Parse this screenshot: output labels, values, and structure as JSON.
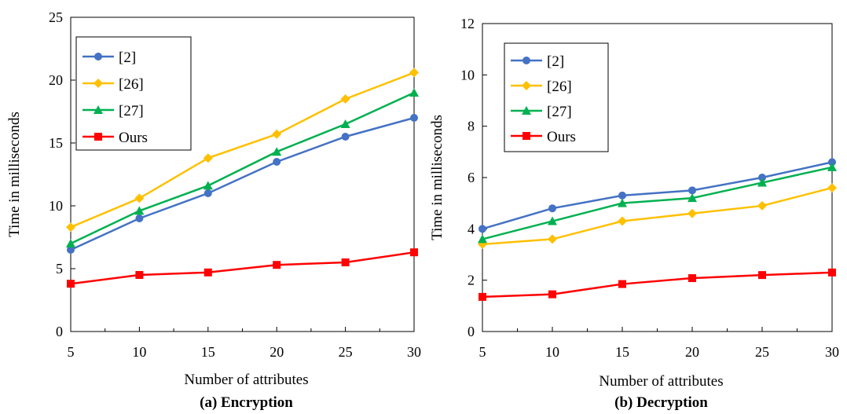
{
  "chart_data": [
    {
      "type": "line",
      "caption": "(a) Encryption",
      "xlabel": "Number of attributes",
      "ylabel": "Time in milliseconds",
      "x": [
        5,
        10,
        15,
        20,
        25,
        30
      ],
      "xlim": [
        5,
        30
      ],
      "ylim": [
        0,
        25
      ],
      "yticks": [
        0,
        5,
        10,
        15,
        20,
        25
      ],
      "xticks": [
        5,
        10,
        15,
        20,
        25,
        30
      ],
      "grid": false,
      "legend_position": "top-left",
      "series": [
        {
          "name": "[2]",
          "color": "#4472C4",
          "marker": "circle",
          "values": [
            6.5,
            9.0,
            11.0,
            13.5,
            15.5,
            17.0
          ]
        },
        {
          "name": "[26]",
          "color": "#FFC000",
          "marker": "diamond",
          "values": [
            8.3,
            10.6,
            13.8,
            15.7,
            18.5,
            20.6
          ]
        },
        {
          "name": "[27]",
          "color": "#00B050",
          "marker": "triangle",
          "values": [
            7.0,
            9.6,
            11.6,
            14.3,
            16.5,
            19.0
          ]
        },
        {
          "name": "Ours",
          "color": "#FF0000",
          "marker": "square",
          "values": [
            3.8,
            4.5,
            4.7,
            5.3,
            5.5,
            6.3
          ]
        }
      ]
    },
    {
      "type": "line",
      "caption": "(b) Decryption",
      "xlabel": "Number of attributes",
      "ylabel": "Time in milliseconds",
      "x": [
        5,
        10,
        15,
        20,
        25,
        30
      ],
      "xlim": [
        5,
        30
      ],
      "ylim": [
        0,
        12
      ],
      "yticks": [
        0,
        2,
        4,
        6,
        8,
        10,
        12
      ],
      "xticks": [
        5,
        10,
        15,
        20,
        25,
        30
      ],
      "grid": false,
      "legend_position": "top-left",
      "series": [
        {
          "name": "[2]",
          "color": "#4472C4",
          "marker": "circle",
          "values": [
            4.0,
            4.8,
            5.3,
            5.5,
            6.0,
            6.6
          ]
        },
        {
          "name": "[26]",
          "color": "#FFC000",
          "marker": "diamond",
          "values": [
            3.4,
            3.6,
            4.3,
            4.6,
            4.9,
            5.6
          ]
        },
        {
          "name": "[27]",
          "color": "#00B050",
          "marker": "triangle",
          "values": [
            3.6,
            4.3,
            5.0,
            5.2,
            5.8,
            6.4
          ]
        },
        {
          "name": "Ours",
          "color": "#FF0000",
          "marker": "square",
          "values": [
            1.35,
            1.45,
            1.85,
            2.08,
            2.2,
            2.3
          ]
        }
      ]
    }
  ]
}
